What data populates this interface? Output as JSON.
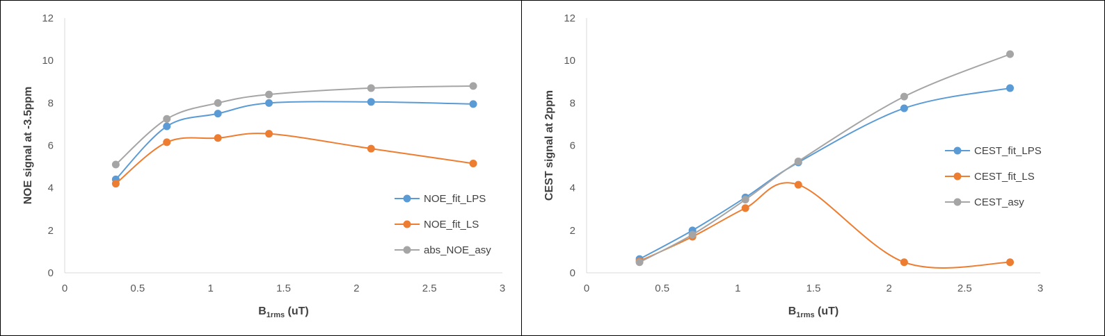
{
  "chart_data": [
    {
      "type": "line",
      "smooth": true,
      "xlabel": "B",
      "xlabel_sub": "1rms",
      "xlabel_unit": " (uT)",
      "ylabel": "NOE signal at -3.5ppm",
      "xlim": [
        0,
        3
      ],
      "ylim": [
        0,
        12
      ],
      "xticks": [
        "0",
        "0.5",
        "1",
        "1.5",
        "2",
        "2.5",
        "3"
      ],
      "yticks": [
        "0",
        "2",
        "4",
        "6",
        "8",
        "10",
        "12"
      ],
      "grid": false,
      "legend_position": "right",
      "x": [
        0.35,
        0.7,
        1.05,
        1.4,
        2.1,
        2.8
      ],
      "series": [
        {
          "name": "NOE_fit_LPS",
          "color": "#5b9bd5",
          "values": [
            4.4,
            6.9,
            7.5,
            8.0,
            8.05,
            7.95
          ]
        },
        {
          "name": "NOE_fit_LS",
          "color": "#ed7d31",
          "values": [
            4.2,
            6.15,
            6.35,
            6.55,
            5.85,
            5.15
          ]
        },
        {
          "name": "abs_NOE_asy",
          "color": "#a5a5a5",
          "values": [
            5.1,
            7.25,
            8.0,
            8.4,
            8.7,
            8.8
          ]
        }
      ]
    },
    {
      "type": "line",
      "smooth": true,
      "xlabel": "B",
      "xlabel_sub": "1rms",
      "xlabel_unit": " (uT)",
      "ylabel": "CEST signal at 2ppm",
      "xlim": [
        0,
        3
      ],
      "ylim": [
        0,
        12
      ],
      "xticks": [
        "0",
        "0.5",
        "1",
        "1.5",
        "2",
        "2.5",
        "3"
      ],
      "yticks": [
        "0",
        "2",
        "4",
        "6",
        "8",
        "10",
        "12"
      ],
      "grid": false,
      "legend_position": "right",
      "x": [
        0.35,
        0.7,
        1.05,
        1.4,
        2.1,
        2.8
      ],
      "series": [
        {
          "name": "CEST_fit_LPS",
          "color": "#5b9bd5",
          "values": [
            0.65,
            2.0,
            3.55,
            5.2,
            7.75,
            8.7
          ]
        },
        {
          "name": "CEST_fit_LS",
          "color": "#ed7d31",
          "values": [
            0.55,
            1.7,
            3.05,
            4.15,
            0.5,
            0.5
          ]
        },
        {
          "name": "CEST_asy",
          "color": "#a5a5a5",
          "values": [
            0.5,
            1.8,
            3.45,
            5.25,
            8.3,
            10.3
          ]
        }
      ]
    }
  ]
}
